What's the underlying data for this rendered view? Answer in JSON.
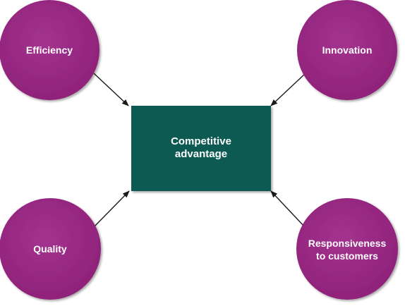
{
  "center": {
    "line1": "Competitive",
    "line2": "advantage",
    "color": "#0b5a52"
  },
  "nodes": {
    "efficiency": "Efficiency",
    "innovation": "Innovation",
    "quality": "Quality",
    "responsiveness_line1": "Responsiveness",
    "responsiveness_line2": "to customers"
  },
  "colors": {
    "circle": "#9b2a87",
    "arrow": "#1a1a1a"
  }
}
